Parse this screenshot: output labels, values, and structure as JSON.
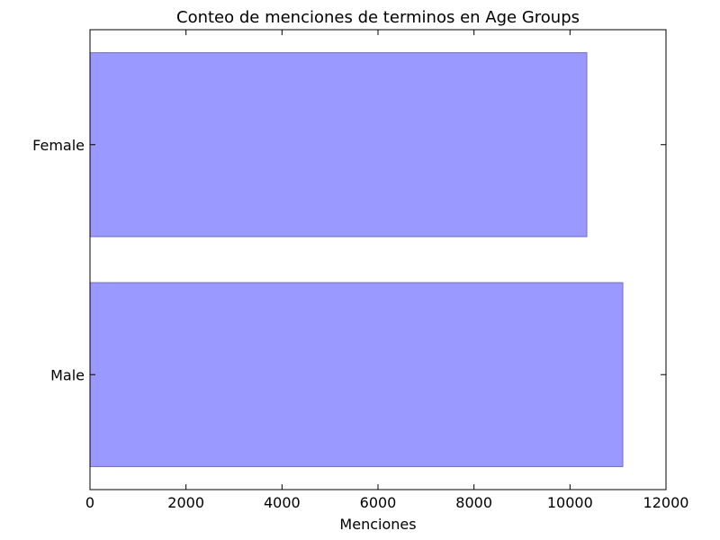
{
  "chart_data": {
    "type": "bar",
    "orientation": "horizontal",
    "title": "Conteo de menciones de terminos en Age Groups",
    "xlabel": "Menciones",
    "ylabel": "",
    "categories": [
      "Female",
      "Male"
    ],
    "values": [
      10350,
      11100
    ],
    "xlim": [
      0,
      12000
    ],
    "xticks": [
      0,
      2000,
      4000,
      6000,
      8000,
      10000,
      12000
    ],
    "xtick_labels": [
      "0",
      "2000",
      "4000",
      "6000",
      "8000",
      "10000",
      "12000"
    ],
    "grid": false,
    "colors": {
      "bar_fill": "#9999ff",
      "bar_edge": "#6f6fb8",
      "axis": "#000000"
    }
  }
}
